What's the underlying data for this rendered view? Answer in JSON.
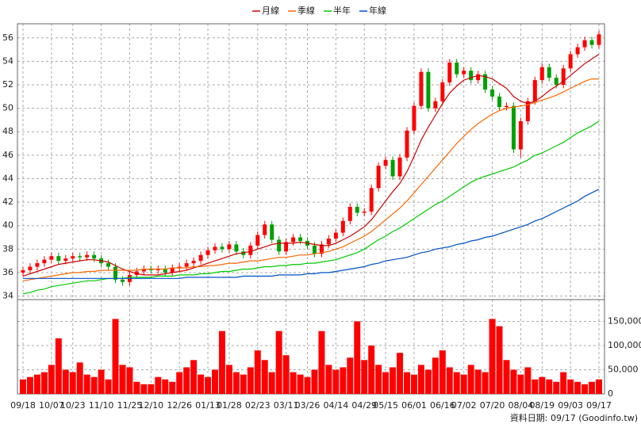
{
  "chart_data": [
    {
      "type": "candlestick",
      "categories": [
        "09/18",
        null,
        null,
        null,
        "10/07",
        null,
        null,
        "10/23",
        null,
        null,
        null,
        "11/10",
        null,
        null,
        null,
        "11/25",
        null,
        null,
        "12/10",
        null,
        null,
        null,
        "12/26",
        null,
        null,
        null,
        "01/13",
        null,
        null,
        "01/28",
        null,
        null,
        null,
        "02/23",
        null,
        null,
        null,
        "03/11",
        null,
        null,
        "03/26",
        null,
        null,
        null,
        "04/14",
        null,
        null,
        null,
        "04/29",
        null,
        null,
        "05/15",
        null,
        null,
        null,
        "06/01",
        null,
        null,
        null,
        "06/16",
        null,
        null,
        "07/02",
        null,
        null,
        null,
        "07/20",
        null,
        null,
        null,
        "08/04",
        null,
        null,
        "08/19",
        null,
        null,
        null,
        "09/03",
        null,
        null,
        null,
        "09/17"
      ],
      "open": [
        36.0,
        36.2,
        36.5,
        36.8,
        37.1,
        37.4,
        37.0,
        37.2,
        37.4,
        37.3,
        37.5,
        37.2,
        36.8,
        36.5,
        35.4,
        35.2,
        35.8,
        36.1,
        36.3,
        36.2,
        36.3,
        36.0,
        36.4,
        36.5,
        36.8,
        37.0,
        37.5,
        37.9,
        38.2,
        38.0,
        38.4,
        37.8,
        37.5,
        38.3,
        39.2,
        40.1,
        38.8,
        37.8,
        38.6,
        39.0,
        38.7,
        38.3,
        37.6,
        38.4,
        38.9,
        39.4,
        40.4,
        41.6,
        41.1,
        41.2,
        43.2,
        45.1,
        45.6,
        44.2,
        45.8,
        48.1,
        50.2,
        53.1,
        50.0,
        50.6,
        52.2,
        53.9,
        52.9,
        53.2,
        52.4,
        52.9,
        51.6,
        51.0,
        50.1,
        50.2,
        46.5,
        48.9,
        50.6,
        52.4,
        53.5,
        52.6,
        52.0,
        53.4,
        54.6,
        55.2,
        55.8,
        55.4
      ],
      "high": [
        36.5,
        36.8,
        37.1,
        37.4,
        37.7,
        37.7,
        37.5,
        37.7,
        37.7,
        37.8,
        37.8,
        37.5,
        37.1,
        36.8,
        35.7,
        36.1,
        36.4,
        36.6,
        36.6,
        36.6,
        36.6,
        36.7,
        36.8,
        37.1,
        37.3,
        37.8,
        38.2,
        38.5,
        38.5,
        38.7,
        38.7,
        38.1,
        38.6,
        39.5,
        40.4,
        40.4,
        39.1,
        38.9,
        39.3,
        39.3,
        39.0,
        38.6,
        38.7,
        39.2,
        39.7,
        40.7,
        41.9,
        41.9,
        41.5,
        43.5,
        45.4,
        45.9,
        45.9,
        46.1,
        48.4,
        50.5,
        53.4,
        53.4,
        50.9,
        52.5,
        54.2,
        54.2,
        53.5,
        53.5,
        53.2,
        53.2,
        51.9,
        51.3,
        50.5,
        50.5,
        49.2,
        50.9,
        52.7,
        53.8,
        53.8,
        52.9,
        53.7,
        54.9,
        55.5,
        56.1,
        56.1,
        56.6
      ],
      "low": [
        35.7,
        35.9,
        36.2,
        36.5,
        36.8,
        36.7,
        36.7,
        36.9,
        37.0,
        37.0,
        36.9,
        36.5,
        36.2,
        35.1,
        34.9,
        34.9,
        35.5,
        35.8,
        35.9,
        35.9,
        35.7,
        35.7,
        36.1,
        36.2,
        36.5,
        36.7,
        37.2,
        37.6,
        37.7,
        37.7,
        37.5,
        37.2,
        37.2,
        38.0,
        38.9,
        38.5,
        37.5,
        37.5,
        38.3,
        38.4,
        38.0,
        37.3,
        37.3,
        38.1,
        38.6,
        39.1,
        40.1,
        40.8,
        40.8,
        40.9,
        42.9,
        44.8,
        43.9,
        43.9,
        45.5,
        47.8,
        49.9,
        49.7,
        49.7,
        50.3,
        51.9,
        52.6,
        52.6,
        52.1,
        52.1,
        51.3,
        50.7,
        49.8,
        49.8,
        46.2,
        45.8,
        48.6,
        50.3,
        52.1,
        52.3,
        51.7,
        51.7,
        53.1,
        54.3,
        54.9,
        55.1,
        55.1
      ],
      "close": [
        36.2,
        36.5,
        36.8,
        37.1,
        37.4,
        37.0,
        37.2,
        37.4,
        37.3,
        37.5,
        37.2,
        36.8,
        36.5,
        35.4,
        35.2,
        35.8,
        36.1,
        36.3,
        36.2,
        36.3,
        36.0,
        36.4,
        36.5,
        36.8,
        37.0,
        37.5,
        37.9,
        38.2,
        38.0,
        38.4,
        37.8,
        37.5,
        38.3,
        39.2,
        40.1,
        38.8,
        37.8,
        38.6,
        39.0,
        38.7,
        38.3,
        37.6,
        38.4,
        38.9,
        39.4,
        40.4,
        41.6,
        41.1,
        41.2,
        43.2,
        45.1,
        45.6,
        44.2,
        45.8,
        48.1,
        50.2,
        53.1,
        50.0,
        50.6,
        52.2,
        53.9,
        52.9,
        53.2,
        52.4,
        52.9,
        51.6,
        51.0,
        50.1,
        50.2,
        46.5,
        48.9,
        50.6,
        52.4,
        53.5,
        52.6,
        52.0,
        53.4,
        54.6,
        55.2,
        55.8,
        55.4,
        56.3
      ],
      "up_color": "#ff0000",
      "down_color": "#00a000",
      "series": [
        {
          "name": "月線",
          "color": "#cc0000",
          "values": [
            35.7,
            35.9,
            36.1,
            36.3,
            36.5,
            36.7,
            36.8,
            36.9,
            37.0,
            37.1,
            37.1,
            37.0,
            36.9,
            36.6,
            36.3,
            36.1,
            35.9,
            35.8,
            35.8,
            35.8,
            35.9,
            36.0,
            36.1,
            36.2,
            36.4,
            36.6,
            36.8,
            37.0,
            37.2,
            37.4,
            37.6,
            37.7,
            37.8,
            38.0,
            38.2,
            38.4,
            38.5,
            38.5,
            38.5,
            38.6,
            38.5,
            38.4,
            38.3,
            38.3,
            38.5,
            38.8,
            39.1,
            39.5,
            39.9,
            40.5,
            41.3,
            42.1,
            42.9,
            43.6,
            44.6,
            45.9,
            47.3,
            48.4,
            49.4,
            50.4,
            51.3,
            51.9,
            52.4,
            52.6,
            52.8,
            52.7,
            52.5,
            52.1,
            51.7,
            51.0,
            50.6,
            50.4,
            50.6,
            51.0,
            51.5,
            51.9,
            52.3,
            52.8,
            53.3,
            53.8,
            54.2,
            54.6
          ]
        },
        {
          "name": "季線",
          "color": "#ff6600",
          "values": [
            35.3,
            35.4,
            35.5,
            35.6,
            35.7,
            35.8,
            35.9,
            36.0,
            36.0,
            36.1,
            36.1,
            36.2,
            36.2,
            36.2,
            36.2,
            36.2,
            36.2,
            36.3,
            36.3,
            36.3,
            36.3,
            36.4,
            36.4,
            36.4,
            36.5,
            36.5,
            36.6,
            36.6,
            36.7,
            36.8,
            36.8,
            36.9,
            37.0,
            37.0,
            37.1,
            37.2,
            37.3,
            37.3,
            37.4,
            37.5,
            37.5,
            37.6,
            37.7,
            37.8,
            38.0,
            38.2,
            38.5,
            38.8,
            39.1,
            39.5,
            40.0,
            40.5,
            41.0,
            41.5,
            42.1,
            42.8,
            43.5,
            44.2,
            44.9,
            45.6,
            46.3,
            47.0,
            47.6,
            48.2,
            48.7,
            49.1,
            49.5,
            49.8,
            50.0,
            50.1,
            50.2,
            50.3,
            50.5,
            50.7,
            50.9,
            51.1,
            51.4,
            51.7,
            52.0,
            52.3,
            52.5,
            52.5
          ]
        },
        {
          "name": "半年",
          "color": "#00cc00",
          "values": [
            34.2,
            34.3,
            34.5,
            34.6,
            34.8,
            34.9,
            35.0,
            35.1,
            35.2,
            35.3,
            35.3,
            35.4,
            35.5,
            35.5,
            35.5,
            35.6,
            35.6,
            35.6,
            35.6,
            35.7,
            35.7,
            35.7,
            35.8,
            35.8,
            35.8,
            35.9,
            35.9,
            36.0,
            36.1,
            36.1,
            36.2,
            36.3,
            36.3,
            36.4,
            36.5,
            36.5,
            36.6,
            36.6,
            36.7,
            36.7,
            36.8,
            36.8,
            36.9,
            37.0,
            37.1,
            37.3,
            37.5,
            37.7,
            38.0,
            38.4,
            38.8,
            39.1,
            39.5,
            39.8,
            40.2,
            40.6,
            41.0,
            41.4,
            41.8,
            42.1,
            42.5,
            42.9,
            43.3,
            43.7,
            44.0,
            44.2,
            44.4,
            44.6,
            44.8,
            45.0,
            45.3,
            45.6,
            46.0,
            46.2,
            46.5,
            46.8,
            47.1,
            47.5,
            47.9,
            48.2,
            48.5,
            48.9
          ]
        },
        {
          "name": "年線",
          "color": "#0050c8",
          "values": [
            35.5,
            35.5,
            35.5,
            35.5,
            35.5,
            35.5,
            35.5,
            35.5,
            35.5,
            35.5,
            35.5,
            35.5,
            35.5,
            35.5,
            35.5,
            35.5,
            35.5,
            35.5,
            35.5,
            35.5,
            35.5,
            35.5,
            35.5,
            35.6,
            35.6,
            35.6,
            35.6,
            35.6,
            35.6,
            35.6,
            35.6,
            35.7,
            35.7,
            35.7,
            35.7,
            35.7,
            35.8,
            35.8,
            35.8,
            35.8,
            35.9,
            35.9,
            36.0,
            36.0,
            36.1,
            36.2,
            36.3,
            36.4,
            36.5,
            36.7,
            36.8,
            37.0,
            37.1,
            37.2,
            37.3,
            37.5,
            37.7,
            37.8,
            38.0,
            38.1,
            38.2,
            38.4,
            38.5,
            38.7,
            38.8,
            39.0,
            39.1,
            39.3,
            39.5,
            39.7,
            39.9,
            40.1,
            40.4,
            40.6,
            40.9,
            41.2,
            41.5,
            41.8,
            42.1,
            42.5,
            42.8,
            43.1
          ]
        }
      ],
      "ylim": [
        33.7,
        57.2
      ],
      "yticks": [
        34,
        36,
        38,
        40,
        42,
        44,
        46,
        48,
        50,
        52,
        54,
        56
      ],
      "grid": true,
      "legend": "top"
    },
    {
      "type": "bar",
      "color": "#ff0000",
      "values": [
        30000,
        35000,
        40000,
        45000,
        60000,
        115000,
        50000,
        45000,
        65000,
        40000,
        35000,
        50000,
        30000,
        155000,
        60000,
        55000,
        25000,
        20000,
        20000,
        35000,
        30000,
        25000,
        45000,
        55000,
        70000,
        40000,
        35000,
        50000,
        130000,
        60000,
        45000,
        40000,
        55000,
        90000,
        70000,
        45000,
        130000,
        80000,
        45000,
        40000,
        35000,
        50000,
        130000,
        60000,
        50000,
        55000,
        75000,
        150000,
        70000,
        100000,
        60000,
        45000,
        55000,
        85000,
        45000,
        40000,
        60000,
        50000,
        75000,
        90000,
        55000,
        45000,
        40000,
        60000,
        50000,
        45000,
        155000,
        140000,
        70000,
        50000,
        40000,
        55000,
        30000,
        35000,
        30000,
        25000,
        45000,
        30000,
        25000,
        20000,
        25000,
        30000
      ],
      "ylim": [
        0,
        195000
      ],
      "yticks": [
        0,
        {
          "value": 50000,
          "label": "50,000"
        },
        {
          "value": 100000,
          "label": "100,000"
        },
        {
          "value": 150000,
          "label": "150,000"
        }
      ],
      "grid": true,
      "annotation": "資料日期: 09/17 (Goodinfo.tw)"
    }
  ]
}
